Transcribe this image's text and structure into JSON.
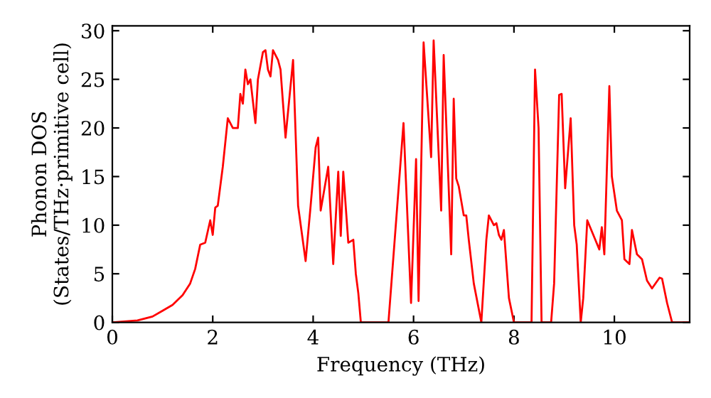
{
  "chart_data": {
    "type": "line",
    "xlabel": "Frequency (THz)",
    "ylabel": "Phonon DOS\n(States/THz·primitive cell)",
    "xlim": [
      0,
      11.5
    ],
    "ylim": [
      0,
      30.5
    ],
    "xticks": [
      0,
      2,
      4,
      6,
      8,
      10
    ],
    "yticks": [
      0,
      5,
      10,
      15,
      20,
      25,
      30
    ],
    "grid": false,
    "legend": false,
    "marker": "none",
    "line_style": "solid",
    "series": [
      {
        "color": "#ff0000",
        "x": [
          0,
          0.5,
          0.8,
          1.0,
          1.2,
          1.4,
          1.55,
          1.65,
          1.75,
          1.85,
          1.95,
          2.0,
          2.05,
          2.1,
          2.2,
          2.3,
          2.4,
          2.5,
          2.55,
          2.6,
          2.65,
          2.7,
          2.75,
          2.85,
          2.9,
          3.0,
          3.05,
          3.1,
          3.15,
          3.2,
          3.3,
          3.35,
          3.45,
          3.6,
          3.7,
          3.85,
          3.95,
          4.05,
          4.1,
          4.15,
          4.3,
          4.4,
          4.5,
          4.55,
          4.6,
          4.7,
          4.8,
          4.85,
          4.9,
          4.95,
          5.5,
          5.8,
          5.95,
          6.05,
          6.1,
          6.2,
          6.35,
          6.4,
          6.55,
          6.6,
          6.75,
          6.8,
          6.85,
          6.9,
          7.0,
          7.05,
          7.1,
          7.2,
          7.35,
          7.45,
          7.5,
          7.6,
          7.65,
          7.7,
          7.75,
          7.8,
          7.9,
          8.0,
          8.35,
          8.42,
          8.49,
          8.55,
          8.74,
          8.8,
          8.9,
          8.95,
          9.02,
          9.13,
          9.2,
          9.25,
          9.33,
          9.38,
          9.46,
          9.62,
          9.7,
          9.75,
          9.8,
          9.9,
          9.95,
          10.05,
          10.15,
          10.2,
          10.3,
          10.35,
          10.45,
          10.55,
          10.65,
          10.75,
          10.9,
          10.95,
          11.05,
          11.15,
          11.5
        ],
        "values": [
          0,
          0.2,
          0.6,
          1.2,
          1.8,
          2.8,
          4,
          5.5,
          8,
          8.2,
          10.5,
          9,
          11.8,
          12,
          16,
          21,
          20,
          20,
          23.5,
          22.5,
          26,
          24.5,
          25,
          20.5,
          25,
          27.8,
          28,
          26,
          25.3,
          28,
          27,
          26,
          19,
          27,
          12,
          6.3,
          12,
          18,
          19,
          11.5,
          16,
          6,
          15.5,
          8.9,
          15.5,
          8.2,
          8.5,
          5,
          3,
          0,
          0,
          20.5,
          2,
          16.8,
          2.2,
          28.8,
          17,
          29,
          11.5,
          27.5,
          7,
          23,
          14.8,
          14,
          11,
          11,
          8.5,
          4,
          0,
          8.5,
          11,
          10,
          10.2,
          9,
          8.5,
          9.5,
          2.5,
          0,
          0,
          26,
          20,
          0,
          0,
          4,
          23.4,
          23.5,
          13.8,
          21,
          10,
          8,
          0,
          2.5,
          10.5,
          8.5,
          7.5,
          9.8,
          7,
          24.3,
          15,
          11.5,
          10.5,
          6.5,
          6,
          9.5,
          7,
          6.5,
          4.3,
          3.5,
          4.6,
          4.5,
          2,
          0,
          0
        ]
      }
    ]
  }
}
